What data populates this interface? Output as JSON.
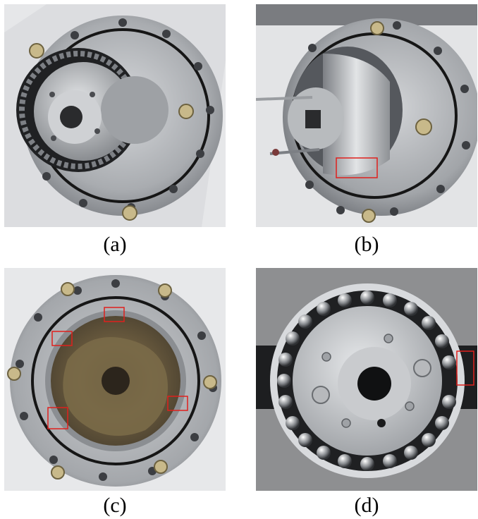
{
  "panels": [
    {
      "id": "a",
      "caption": "(a)"
    },
    {
      "id": "b",
      "caption": "(b)"
    },
    {
      "id": "c",
      "caption": "(c)"
    },
    {
      "id": "d",
      "caption": "(d)"
    }
  ],
  "colors": {
    "metal": "#b9bcc0",
    "metal_dark": "#6e7176",
    "background_white": "#e9eaec",
    "background_gray": "#8d8e90",
    "grease": "#6a5a3c",
    "oring": "#1a1a1a",
    "highlight_box": "#e0201d"
  }
}
